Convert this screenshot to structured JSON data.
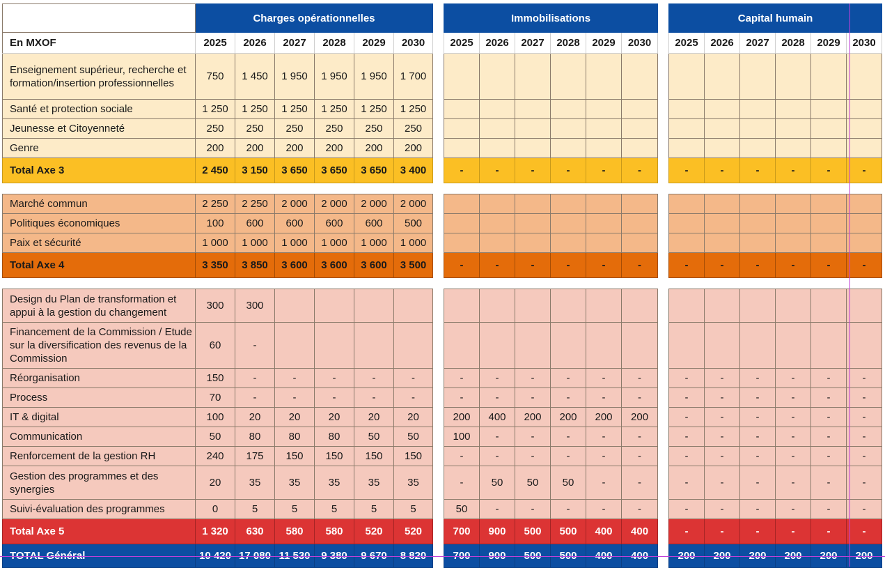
{
  "header": {
    "corner_label": "En MXOF",
    "sections": [
      {
        "title": "Charges opérationnelles",
        "years": [
          "2025",
          "2026",
          "2027",
          "2028",
          "2029",
          "2030"
        ]
      },
      {
        "title": "Immobilisations",
        "years": [
          "2025",
          "2026",
          "2027",
          "2028",
          "2029",
          "2030"
        ]
      },
      {
        "title": "Capital humain",
        "years": [
          "2025",
          "2026",
          "2027",
          "2028",
          "2029",
          "2030"
        ]
      }
    ]
  },
  "rows": [
    {
      "label": "Enseignement supérieur, recherche et formation/insertion professionnelles",
      "ops": [
        "750",
        "1 450",
        "1 950",
        "1 950",
        "1 950",
        "1 700"
      ],
      "imm": [
        "",
        "",
        "",
        "",
        "",
        ""
      ],
      "cap": [
        "",
        "",
        "",
        "",
        "",
        ""
      ]
    },
    {
      "label": "Santé et protection sociale",
      "ops": [
        "1 250",
        "1 250",
        "1 250",
        "1 250",
        "1 250",
        "1 250"
      ],
      "imm": [
        "",
        "",
        "",
        "",
        "",
        ""
      ],
      "cap": [
        "",
        "",
        "",
        "",
        "",
        ""
      ]
    },
    {
      "label": "Jeunesse et Citoyenneté",
      "ops": [
        "250",
        "250",
        "250",
        "250",
        "250",
        "250"
      ],
      "imm": [
        "",
        "",
        "",
        "",
        "",
        ""
      ],
      "cap": [
        "",
        "",
        "",
        "",
        "",
        ""
      ]
    },
    {
      "label": "Genre",
      "ops": [
        "200",
        "200",
        "200",
        "200",
        "200",
        "200"
      ],
      "imm": [
        "",
        "",
        "",
        "",
        "",
        ""
      ],
      "cap": [
        "",
        "",
        "",
        "",
        "",
        ""
      ]
    },
    {
      "label": "Total Axe 3",
      "ops": [
        "2 450",
        "3 150",
        "3 650",
        "3 650",
        "3 650",
        "3 400"
      ],
      "imm": [
        "-",
        "-",
        "-",
        "-",
        "-",
        "-"
      ],
      "cap": [
        "-",
        "-",
        "-",
        "-",
        "-",
        "-"
      ]
    },
    {
      "label": "Marché commun",
      "ops": [
        "2 250",
        "2 250",
        "2 000",
        "2 000",
        "2 000",
        "2 000"
      ],
      "imm": [
        "",
        "",
        "",
        "",
        "",
        ""
      ],
      "cap": [
        "",
        "",
        "",
        "",
        "",
        ""
      ]
    },
    {
      "label": "Politiques économiques",
      "ops": [
        "100",
        "600",
        "600",
        "600",
        "600",
        "500"
      ],
      "imm": [
        "",
        "",
        "",
        "",
        "",
        ""
      ],
      "cap": [
        "",
        "",
        "",
        "",
        "",
        ""
      ]
    },
    {
      "label": "Paix et sécurité",
      "ops": [
        "1 000",
        "1 000",
        "1 000",
        "1 000",
        "1 000",
        "1 000"
      ],
      "imm": [
        "",
        "",
        "",
        "",
        "",
        ""
      ],
      "cap": [
        "",
        "",
        "",
        "",
        "",
        ""
      ]
    },
    {
      "label": "Total Axe 4",
      "ops": [
        "3 350",
        "3 850",
        "3 600",
        "3 600",
        "3 600",
        "3 500"
      ],
      "imm": [
        "-",
        "-",
        "-",
        "-",
        "-",
        "-"
      ],
      "cap": [
        "-",
        "-",
        "-",
        "-",
        "-",
        "-"
      ]
    },
    {
      "label": "Design du Plan de transformation et appui à la gestion du changement",
      "ops": [
        "300",
        "300",
        "",
        "",
        "",
        ""
      ],
      "imm": [
        "",
        "",
        "",
        "",
        "",
        ""
      ],
      "cap": [
        "",
        "",
        "",
        "",
        "",
        ""
      ]
    },
    {
      "label": "Financement de la Commission / Etude sur la diversification des revenus de la Commission",
      "ops": [
        "60",
        "-",
        "",
        "",
        "",
        ""
      ],
      "imm": [
        "",
        "",
        "",
        "",
        "",
        ""
      ],
      "cap": [
        "",
        "",
        "",
        "",
        "",
        ""
      ]
    },
    {
      "label": "Réorganisation",
      "ops": [
        "150",
        "-",
        "-",
        "-",
        "-",
        "-"
      ],
      "imm": [
        "-",
        "-",
        "-",
        "-",
        "-",
        "-"
      ],
      "cap": [
        "-",
        "-",
        "-",
        "-",
        "-",
        "-"
      ]
    },
    {
      "label": "Process",
      "ops": [
        "70",
        "-",
        "-",
        "-",
        "-",
        "-"
      ],
      "imm": [
        "-",
        "-",
        "-",
        "-",
        "-",
        "-"
      ],
      "cap": [
        "-",
        "-",
        "-",
        "-",
        "-",
        "-"
      ]
    },
    {
      "label": "IT & digital",
      "ops": [
        "100",
        "20",
        "20",
        "20",
        "20",
        "20"
      ],
      "imm": [
        "200",
        "400",
        "200",
        "200",
        "200",
        "200"
      ],
      "cap": [
        "-",
        "-",
        "-",
        "-",
        "-",
        "-"
      ]
    },
    {
      "label": "Communication",
      "ops": [
        "50",
        "80",
        "80",
        "80",
        "50",
        "50"
      ],
      "imm": [
        "100",
        "-",
        "-",
        "-",
        "-",
        "-"
      ],
      "cap": [
        "-",
        "-",
        "-",
        "-",
        "-",
        "-"
      ]
    },
    {
      "label": "Renforcement de la gestion RH",
      "ops": [
        "240",
        "175",
        "150",
        "150",
        "150",
        "150"
      ],
      "imm": [
        "-",
        "-",
        "-",
        "-",
        "-",
        "-"
      ],
      "cap": [
        "-",
        "-",
        "-",
        "-",
        "-",
        "-"
      ]
    },
    {
      "label": "Gestion des programmes et des synergies",
      "ops": [
        "20",
        "35",
        "35",
        "35",
        "35",
        "35"
      ],
      "imm": [
        "-",
        "50",
        "50",
        "50",
        "-",
        "-"
      ],
      "cap": [
        "-",
        "-",
        "-",
        "-",
        "-",
        "-"
      ]
    },
    {
      "label": "Suivi-évaluation des programmes",
      "ops": [
        "0",
        "5",
        "5",
        "5",
        "5",
        "5"
      ],
      "imm": [
        "50",
        "-",
        "-",
        "-",
        "-",
        "-"
      ],
      "cap": [
        "-",
        "-",
        "-",
        "-",
        "-",
        "-"
      ]
    },
    {
      "label": "Total Axe 5",
      "ops": [
        "1 320",
        "630",
        "580",
        "580",
        "520",
        "520"
      ],
      "imm": [
        "700",
        "900",
        "500",
        "500",
        "400",
        "400"
      ],
      "cap": [
        "-",
        "-",
        "-",
        "-",
        "-",
        "-"
      ]
    },
    {
      "label": "TOTAL Général",
      "ops": [
        "10 420",
        "17 080",
        "11 530",
        "9 380",
        "9 670",
        "8 820"
      ],
      "imm": [
        "700",
        "900",
        "500",
        "500",
        "400",
        "400"
      ],
      "cap": [
        "200",
        "200",
        "200",
        "200",
        "200",
        "200"
      ]
    }
  ],
  "colors": {
    "header_blue": "#0c4ea2",
    "axe3_light": "#fdebc8",
    "axe3_total": "#fbbf24",
    "axe4_light": "#f4b889",
    "axe4_total": "#e46c0a",
    "axe5_light": "#f5c9bd",
    "axe5_total": "#dc3434"
  }
}
